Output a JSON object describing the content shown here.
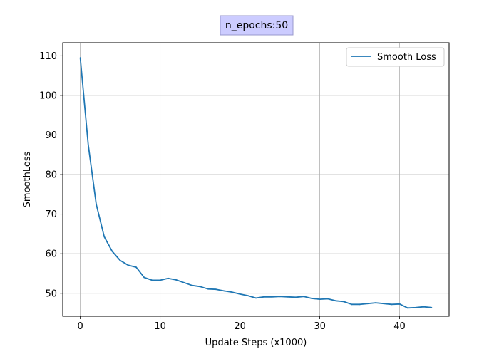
{
  "chart_data": {
    "type": "line",
    "title": "n_epochs:50",
    "xlabel": "Update Steps (x1000)",
    "ylabel": "SmoothLoss",
    "xlim": [
      -2.2,
      46.2
    ],
    "ylim": [
      44.2,
      113.3
    ],
    "xticks": [
      0,
      10,
      20,
      30,
      40
    ],
    "yticks": [
      50,
      60,
      70,
      80,
      90,
      100,
      110
    ],
    "grid": true,
    "legend_position": "top-right",
    "series": [
      {
        "name": "Smooth Loss",
        "color": "#1f77b4",
        "x": [
          0,
          1,
          2,
          3,
          4,
          5,
          6,
          7,
          8,
          9,
          10,
          11,
          12,
          13,
          14,
          15,
          16,
          17,
          18,
          19,
          20,
          21,
          22,
          23,
          24,
          25,
          26,
          27,
          28,
          29,
          30,
          31,
          32,
          33,
          34,
          35,
          36,
          37,
          38,
          39,
          40,
          41,
          42,
          43,
          44
        ],
        "values": [
          109.5,
          87.5,
          72.5,
          64.3,
          60.6,
          58.3,
          57.1,
          56.6,
          54.0,
          53.3,
          53.3,
          53.8,
          53.4,
          52.7,
          52.0,
          51.7,
          51.1,
          51.0,
          50.6,
          50.3,
          49.8,
          49.4,
          48.8,
          49.1,
          49.1,
          49.2,
          49.1,
          49.0,
          49.2,
          48.7,
          48.5,
          48.6,
          48.1,
          47.9,
          47.2,
          47.2,
          47.4,
          47.6,
          47.4,
          47.2,
          47.3,
          46.3,
          46.4,
          46.6,
          46.4
        ]
      }
    ]
  }
}
